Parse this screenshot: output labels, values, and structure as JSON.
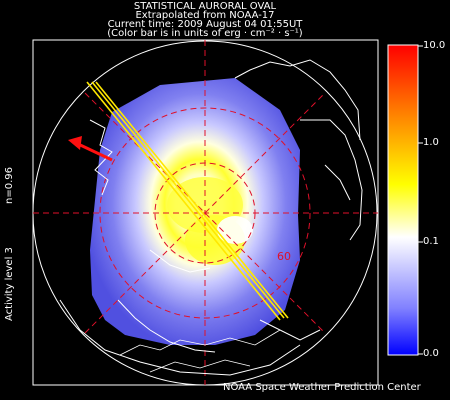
{
  "header": {
    "line1": "STATISTICAL AURORAL OVAL",
    "line2": "Extrapolated from NOAA-17",
    "line3": "Current time: 2009 August 04 01:55UT",
    "line4": "(Color bar is in units of erg · cm⁻² · s⁻¹)"
  },
  "left_labels": {
    "n_value": "n=0.96",
    "activity": "Activity level 3"
  },
  "colorbar": {
    "ticks": [
      "10.0",
      "1.0",
      "0.1",
      "0.0"
    ],
    "colors": [
      "#ff0000",
      "#ff7f00",
      "#ffff00",
      "#ffffff",
      "#9090ff",
      "#0000ff"
    ]
  },
  "map": {
    "latitude_label": "60",
    "grid_color": "#e0102a",
    "arrow_color": "#ff1010",
    "pass_color": "#ffe800"
  },
  "footer": "NOAA Space Weather Prediction Center"
}
